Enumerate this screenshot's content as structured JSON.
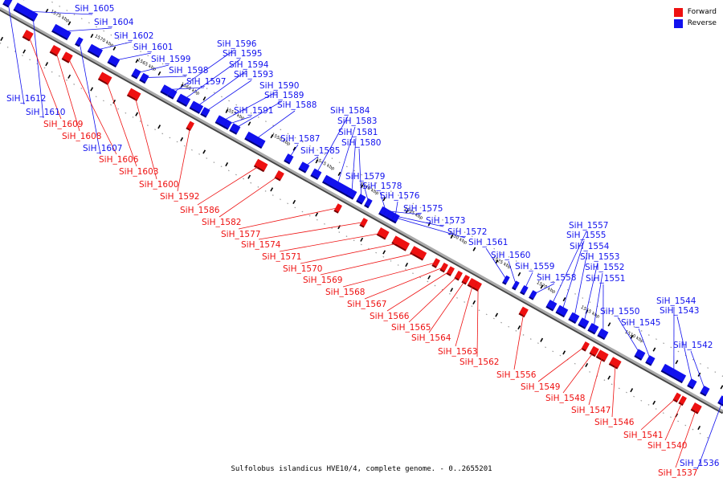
{
  "caption": "Sulfolobus islandicus HVE10/4, complete genome. - 0..2655201",
  "legend": [
    {
      "label": "Forward",
      "color": "#ee1111"
    },
    {
      "label": "Reverse",
      "color": "#1111ee"
    }
  ],
  "colors": {
    "forward": "#ee1111",
    "reverse": "#1111ee",
    "backbone": "#888888"
  },
  "ticks": [
    "1575 kbp",
    "1570 kbp",
    "1565 kbp",
    "1560 kbp",
    "1555 kbp",
    "1550 kbp",
    "1545 kbp",
    "1540 kbp",
    "1535 kbp",
    "1530 kbp",
    "1525 kbp",
    "1520 kbp",
    "1515 kbp",
    "1510 kbp"
  ],
  "genes": [
    {
      "name": "SiH_1605",
      "strand": "reverse"
    },
    {
      "name": "SiH_1604",
      "strand": "reverse"
    },
    {
      "name": "SiH_1602",
      "strand": "reverse"
    },
    {
      "name": "SiH_1601",
      "strand": "reverse"
    },
    {
      "name": "SiH_1599",
      "strand": "reverse"
    },
    {
      "name": "SiH_1598",
      "strand": "reverse"
    },
    {
      "name": "SiH_1597",
      "strand": "reverse"
    },
    {
      "name": "SiH_1596",
      "strand": "reverse"
    },
    {
      "name": "SiH_1595",
      "strand": "reverse"
    },
    {
      "name": "SiH_1594",
      "strand": "reverse"
    },
    {
      "name": "SiH_1593",
      "strand": "reverse"
    },
    {
      "name": "SiH_1590",
      "strand": "reverse"
    },
    {
      "name": "SiH_1589",
      "strand": "reverse"
    },
    {
      "name": "SiH_1588",
      "strand": "reverse"
    },
    {
      "name": "SiH_1591",
      "strand": "reverse"
    },
    {
      "name": "SiH_1587",
      "strand": "reverse"
    },
    {
      "name": "SiH_1585",
      "strand": "reverse"
    },
    {
      "name": "SiH_1584",
      "strand": "reverse"
    },
    {
      "name": "SiH_1583",
      "strand": "reverse"
    },
    {
      "name": "SiH_1581",
      "strand": "reverse"
    },
    {
      "name": "SiH_1580",
      "strand": "reverse"
    },
    {
      "name": "SiH_1579",
      "strand": "reverse"
    },
    {
      "name": "SiH_1578",
      "strand": "reverse"
    },
    {
      "name": "SiH_1576",
      "strand": "reverse"
    },
    {
      "name": "SiH_1575",
      "strand": "reverse"
    },
    {
      "name": "SiH_1573",
      "strand": "reverse"
    },
    {
      "name": "SiH_1572",
      "strand": "reverse"
    },
    {
      "name": "SiH_1561",
      "strand": "reverse"
    },
    {
      "name": "SiH_1560",
      "strand": "reverse"
    },
    {
      "name": "SiH_1559",
      "strand": "reverse"
    },
    {
      "name": "SiH_1558",
      "strand": "reverse"
    },
    {
      "name": "SiH_1557",
      "strand": "reverse"
    },
    {
      "name": "SiH_1555",
      "strand": "reverse"
    },
    {
      "name": "SiH_1554",
      "strand": "reverse"
    },
    {
      "name": "SiH_1553",
      "strand": "reverse"
    },
    {
      "name": "SiH_1552",
      "strand": "reverse"
    },
    {
      "name": "SiH_1551",
      "strand": "reverse"
    },
    {
      "name": "SiH_1550",
      "strand": "reverse"
    },
    {
      "name": "SiH_1545",
      "strand": "reverse"
    },
    {
      "name": "SiH_1544",
      "strand": "reverse"
    },
    {
      "name": "SiH_1543",
      "strand": "reverse"
    },
    {
      "name": "SiH_1542",
      "strand": "reverse"
    },
    {
      "name": "SiH_1536",
      "strand": "reverse"
    },
    {
      "name": "SiH_1612",
      "strand": "reverse"
    },
    {
      "name": "SiH_1610",
      "strand": "reverse"
    },
    {
      "name": "SiH_1607",
      "strand": "reverse"
    },
    {
      "name": "SiH_1609",
      "strand": "forward"
    },
    {
      "name": "SiH_1608",
      "strand": "forward"
    },
    {
      "name": "SiH_1606",
      "strand": "forward"
    },
    {
      "name": "SiH_1603",
      "strand": "forward"
    },
    {
      "name": "SiH_1600",
      "strand": "forward"
    },
    {
      "name": "SiH_1592",
      "strand": "forward"
    },
    {
      "name": "SiH_1586",
      "strand": "forward"
    },
    {
      "name": "SiH_1582",
      "strand": "forward"
    },
    {
      "name": "SiH_1577",
      "strand": "forward"
    },
    {
      "name": "SiH_1574",
      "strand": "forward"
    },
    {
      "name": "SiH_1571",
      "strand": "forward"
    },
    {
      "name": "SiH_1570",
      "strand": "forward"
    },
    {
      "name": "SiH_1569",
      "strand": "forward"
    },
    {
      "name": "SiH_1568",
      "strand": "forward"
    },
    {
      "name": "SiH_1567",
      "strand": "forward"
    },
    {
      "name": "SiH_1566",
      "strand": "forward"
    },
    {
      "name": "SiH_1565",
      "strand": "forward"
    },
    {
      "name": "SiH_1564",
      "strand": "forward"
    },
    {
      "name": "SiH_1563",
      "strand": "forward"
    },
    {
      "name": "SiH_1562",
      "strand": "forward"
    },
    {
      "name": "SiH_1556",
      "strand": "forward"
    },
    {
      "name": "SiH_1549",
      "strand": "forward"
    },
    {
      "name": "SiH_1548",
      "strand": "forward"
    },
    {
      "name": "SiH_1547",
      "strand": "forward"
    },
    {
      "name": "SiH_1546",
      "strand": "forward"
    },
    {
      "name": "SiH_1541",
      "strand": "forward"
    },
    {
      "name": "SiH_1540",
      "strand": "forward"
    },
    {
      "name": "SiH_1537",
      "strand": "forward"
    }
  ]
}
